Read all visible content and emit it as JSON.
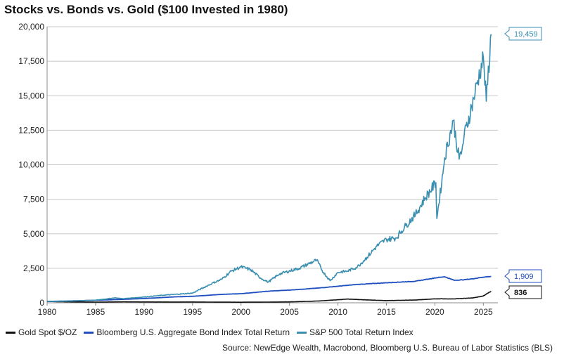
{
  "chart_data": {
    "type": "line",
    "title": "Stocks vs. Bonds vs. Gold ($100 Invested in 1980)",
    "xlabel": "",
    "ylabel": "",
    "xlim": [
      1980,
      2026.5
    ],
    "ylim": [
      0,
      20000
    ],
    "x_ticks": [
      1980,
      1985,
      1990,
      1995,
      2000,
      2005,
      2010,
      2015,
      2020,
      2025
    ],
    "y_ticks": [
      0,
      2500,
      5000,
      7500,
      10000,
      12500,
      15000,
      17500,
      20000
    ],
    "y_tick_labels": [
      "0",
      "2,500",
      "5,000",
      "7,500",
      "10,000",
      "12,500",
      "15,000",
      "17,500",
      "20,000"
    ],
    "grid": true,
    "legend_position": "bottom-left",
    "series": [
      {
        "name": "Gold Spot $/OZ",
        "color": "#111111",
        "end_label": "836",
        "x": [
          1980,
          1982,
          1985,
          1988,
          1990,
          1993,
          1995,
          1998,
          2000,
          2002,
          2005,
          2008,
          2011,
          2013,
          2015,
          2018,
          2020,
          2022,
          2024,
          2025,
          2025.8
        ],
        "values": [
          100,
          70,
          52,
          70,
          62,
          56,
          60,
          45,
          42,
          48,
          65,
          130,
          270,
          210,
          160,
          200,
          290,
          280,
          360,
          500,
          836
        ]
      },
      {
        "name": "Bloomberg U.S. Aggregate Bond Index Total Return",
        "color": "#1f4fbf",
        "end_label": "1,909",
        "x": [
          1980,
          1982,
          1985,
          1988,
          1990,
          1993,
          1995,
          1998,
          2000,
          2003,
          2005,
          2008,
          2010,
          2012,
          2015,
          2018,
          2020,
          2021,
          2022,
          2023,
          2024,
          2025,
          2025.8
        ],
        "values": [
          100,
          125,
          185,
          255,
          310,
          425,
          470,
          610,
          660,
          850,
          920,
          1070,
          1200,
          1330,
          1450,
          1560,
          1800,
          1890,
          1630,
          1670,
          1750,
          1860,
          1909
        ]
      },
      {
        "name": "S&P 500 Total Return Index",
        "color": "#3a8fb0",
        "end_label": "19,459",
        "x": [
          1980,
          1982,
          1985,
          1987,
          1987.8,
          1990,
          1992,
          1995,
          1997,
          1998,
          1999,
          2000,
          2001,
          2002,
          2002.8,
          2004,
          2006,
          2007.8,
          2008.5,
          2009.2,
          2010,
          2011,
          2012,
          2013,
          2014,
          2015,
          2016,
          2017,
          2018,
          2019,
          2020.1,
          2020.2,
          2020.9,
          2021,
          2021.9,
          2022.5,
          2022.8,
          2023,
          2024,
          2025,
          2025.3,
          2025.8
        ],
        "values": [
          100,
          120,
          190,
          360,
          300,
          420,
          550,
          700,
          1400,
          1700,
          2300,
          2600,
          2400,
          1800,
          1500,
          2100,
          2500,
          3100,
          2200,
          1600,
          2200,
          2300,
          2600,
          3300,
          4100,
          4600,
          4700,
          5600,
          6400,
          7600,
          8700,
          6100,
          9800,
          10500,
          13200,
          10400,
          11100,
          12000,
          14800,
          17800,
          14600,
          19459
        ]
      }
    ]
  },
  "source": "Source: NewEdge Wealth, Macrobond, Bloomberg U.S. Bureau of Labor Statistics (BLS)"
}
